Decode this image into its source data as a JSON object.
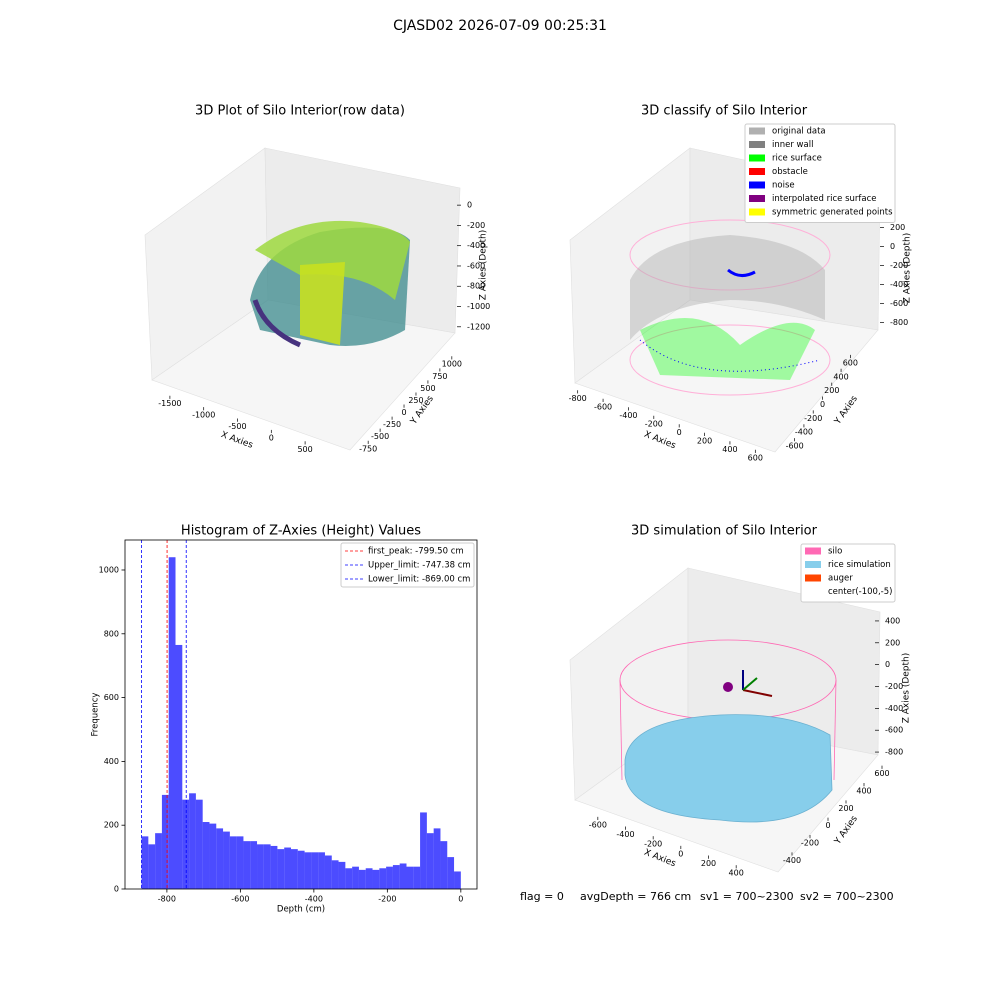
{
  "title": "CJASD02 2026-07-09 00:25:31",
  "footer": [
    "flag = 0",
    "avgDepth = 766 cm",
    "sv1 = 700~2300",
    "sv2 = 700~2300"
  ],
  "chart_data": [
    {
      "type": "scatter3d",
      "title": "3D Plot of Silo Interior(row data)",
      "xlabel": "X Axies",
      "ylabel": "Y Axies",
      "zlabel": "Z Axies (Depth)",
      "xlim": [
        -1750,
        750
      ],
      "xticks": [
        -1500,
        -1000,
        -500,
        0,
        500
      ],
      "ylim": [
        -900,
        1150
      ],
      "yticks": [
        -750,
        -500,
        -250,
        0,
        250,
        500,
        750,
        1000
      ],
      "zlim": [
        -1350,
        100
      ],
      "zticks": [
        0,
        -200,
        -400,
        -600,
        -800,
        -1000,
        -1200
      ]
    },
    {
      "type": "scatter3d",
      "title": "3D classify of Silo Interior",
      "xlabel": "X Axies",
      "ylabel": "Y Axies",
      "zlabel": "Z Axies (Depth)",
      "xlim": [
        -900,
        700
      ],
      "xticks": [
        -800,
        -600,
        -400,
        -200,
        0,
        200,
        400,
        600
      ],
      "ylim": [
        -700,
        700
      ],
      "yticks": [
        -600,
        -400,
        -200,
        0,
        200,
        400,
        600
      ],
      "zlim": [
        -900,
        300
      ],
      "zticks": [
        -800,
        -600,
        -400,
        -200,
        0,
        200
      ],
      "series": [
        {
          "name": "original data",
          "color": "#b0b0b0"
        },
        {
          "name": "inner wall",
          "color": "#808080"
        },
        {
          "name": "rice surface",
          "color": "#00ff00"
        },
        {
          "name": "obstacle",
          "color": "#ff0000"
        },
        {
          "name": "noise",
          "color": "#0000ff"
        },
        {
          "name": "interpolated rice surface",
          "color": "#800080"
        },
        {
          "name": "symmetric generated points",
          "color": "#ffff00"
        }
      ]
    },
    {
      "type": "histogram",
      "title": "Histogram of Z-Axies (Height) Values",
      "xlabel": "Depth (cm)",
      "ylabel": "Frequency",
      "color": "#0000ff",
      "xlim": [
        -914,
        44
      ],
      "xticks": [
        -800,
        -600,
        -400,
        -200,
        0
      ],
      "ylim": [
        0,
        1094
      ],
      "yticks": [
        0,
        200,
        400,
        600,
        800,
        1000
      ],
      "bins": [
        -869,
        -850.51,
        -832.02,
        -813.53,
        -795.04,
        -776.55,
        -758.06,
        -739.57,
        -721.08,
        -702.59,
        -684.1,
        -665.61,
        -647.12,
        -628.63,
        -610.14,
        -591.65,
        -573.16,
        -554.67,
        -536.18,
        -517.69,
        -499.2,
        -480.71,
        -462.22,
        -443.73,
        -425.24,
        -406.75,
        -388.26,
        -369.77,
        -351.28,
        -332.79,
        -314.3,
        -295.81,
        -277.32,
        -258.83,
        -240.34,
        -221.85,
        -203.36,
        -184.87,
        -166.38,
        -147.89,
        -129.4,
        -110.91,
        -92.42,
        -73.93,
        -55.44,
        -36.95,
        -18.46,
        0
      ],
      "values": [
        165,
        140,
        175,
        295,
        1040,
        765,
        280,
        300,
        280,
        210,
        205,
        190,
        180,
        165,
        165,
        150,
        150,
        140,
        140,
        135,
        125,
        130,
        125,
        120,
        115,
        115,
        115,
        105,
        90,
        85,
        65,
        70,
        60,
        65,
        60,
        65,
        70,
        75,
        80,
        70,
        70,
        240,
        175,
        190,
        150,
        100,
        55
      ],
      "vlines": [
        {
          "name": "first_peak: -799.50 cm",
          "value": -799.5,
          "color": "#ff0000"
        },
        {
          "name": "Upper_limit: -747.38 cm",
          "value": -747.38,
          "color": "#0000ff"
        },
        {
          "name": "Lower_limit: -869.00 cm",
          "value": -869,
          "color": "#0000ff"
        }
      ]
    },
    {
      "type": "scatter3d",
      "title": "3D simulation of Silo Interior",
      "xlabel": "X Axies",
      "ylabel": "Y Axies",
      "zlabel": "Z Axies (Depth)",
      "xlim": [
        -700,
        500
      ],
      "xticks": [
        -600,
        -400,
        -200,
        0,
        200,
        400
      ],
      "ylim": [
        -500,
        700
      ],
      "yticks": [
        -400,
        -200,
        0,
        200,
        400,
        600
      ],
      "zlim": [
        -900,
        500
      ],
      "zticks": [
        -800,
        -600,
        -400,
        -200,
        0,
        200,
        400
      ],
      "series": [
        {
          "name": "silo",
          "color": "#ff69b4"
        },
        {
          "name": "rice simulation",
          "color": "#87ceeb"
        },
        {
          "name": "auger",
          "color": "#ff4500"
        },
        {
          "name": "center(-100,-5)",
          "color": null
        }
      ]
    }
  ]
}
